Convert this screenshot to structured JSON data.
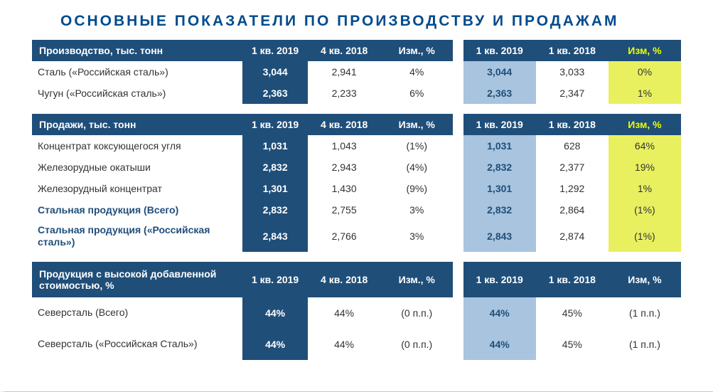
{
  "title": "ОСНОВНЫЕ ПОКАЗАТЕЛИ ПО ПРОИЗВОДСТВУ И ПРОДАЖАМ",
  "col_headers": {
    "q1_2019": "1 кв. 2019",
    "q4_2018": "4 кв. 2018",
    "change_pct": "Изм., %",
    "q1_2019b": "1 кв. 2019",
    "q1_2018": "1 кв. 2018",
    "change_pct_b": "Изм, %",
    "change_pct_c": "Изм, %"
  },
  "table1": {
    "header": "Производство, тыс. тонн",
    "rows": [
      {
        "label": "Сталь («Российская сталь»)",
        "c1": "3,044",
        "c2": "2,941",
        "c3": "4%",
        "c4": "3,044",
        "c5": "3,033",
        "c6": "0%"
      },
      {
        "label": "Чугун («Российская сталь»)",
        "c1": "2,363",
        "c2": "2,233",
        "c3": "6%",
        "c4": "2,363",
        "c5": "2,347",
        "c6": "1%"
      }
    ]
  },
  "table2": {
    "header": "Продажи, тыс. тонн",
    "rows": [
      {
        "label": "Концентрат коксующегося угля",
        "bold": false,
        "c1": "1,031",
        "c2": "1,043",
        "c3": "(1%)",
        "c4": "1,031",
        "c5": "628",
        "c6": "64%"
      },
      {
        "label": "Железорудные окатыши",
        "bold": false,
        "c1": "2,832",
        "c2": "2,943",
        "c3": "(4%)",
        "c4": "2,832",
        "c5": "2,377",
        "c6": "19%"
      },
      {
        "label": "Железорудный концентрат",
        "bold": false,
        "c1": "1,301",
        "c2": "1,430",
        "c3": "(9%)",
        "c4": "1,301",
        "c5": "1,292",
        "c6": "1%"
      },
      {
        "label": "Стальная продукция (Всего)",
        "bold": true,
        "c1": "2,832",
        "c2": "2,755",
        "c3": "3%",
        "c4": "2,832",
        "c5": "2,864",
        "c6": "(1%)"
      },
      {
        "label": "Стальная продукция («Российская сталь»)",
        "bold": true,
        "tall": true,
        "c1": "2,843",
        "c2": "2,766",
        "c3": "3%",
        "c4": "2,843",
        "c5": "2,874",
        "c6": "(1%)"
      }
    ]
  },
  "table3": {
    "header": "Продукция с высокой добавленной стоимостью, %",
    "rows": [
      {
        "label": "Северсталь (Всего)",
        "c1": "44%",
        "c2": "44%",
        "c3": "(0  п.п.)",
        "c4": "44%",
        "c5": "45%",
        "c6": "(1  п.п.)"
      },
      {
        "label": "Северсталь («Российская Сталь»)",
        "c1": "44%",
        "c2": "44%",
        "c3": "(0  п.п.)",
        "c4": "44%",
        "c5": "45%",
        "c6": "(1  п.п.)"
      }
    ]
  }
}
